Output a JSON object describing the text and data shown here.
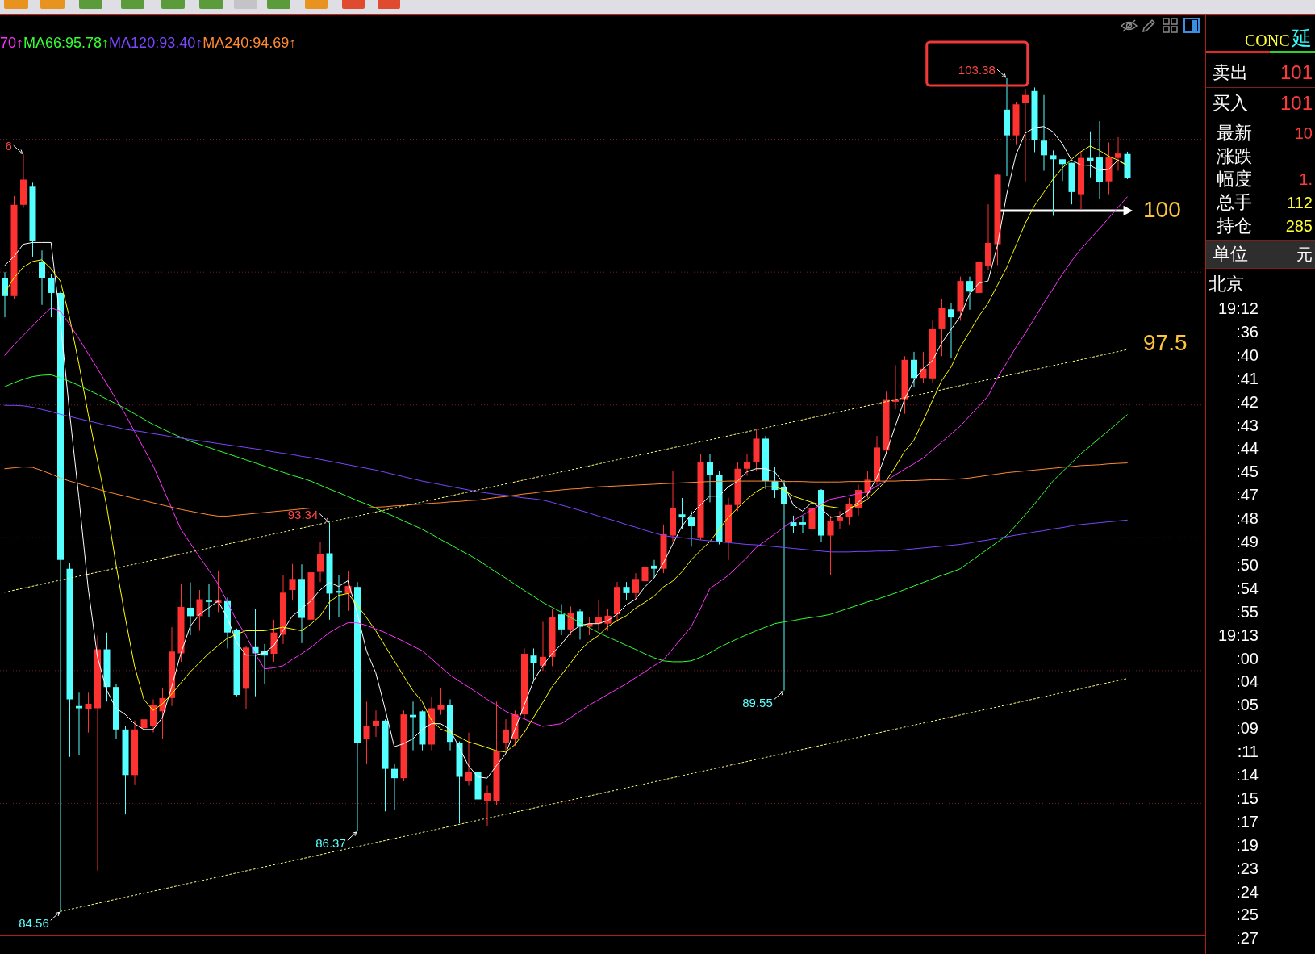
{
  "chart_data": [
    {
      "type": "candlestick",
      "categories": [
        null,
        null,
        null,
        null,
        null,
        null,
        null,
        null,
        null,
        null,
        null,
        null,
        null,
        null,
        null,
        null,
        null,
        null,
        null,
        null,
        null,
        null,
        null,
        null,
        null,
        null,
        null,
        null,
        null,
        null,
        null,
        null,
        null,
        null,
        null,
        null,
        null,
        null,
        null,
        null,
        null,
        null,
        null,
        null,
        null,
        null,
        null,
        null,
        null,
        null,
        null,
        null,
        null,
        null,
        null,
        null,
        null,
        null,
        null,
        null,
        null,
        null,
        null,
        null,
        null,
        null,
        null,
        null,
        null,
        null,
        null,
        null,
        null,
        null,
        null,
        null,
        null,
        null,
        null,
        null,
        null,
        null,
        null,
        null,
        null,
        null,
        null,
        null,
        null,
        null,
        null,
        null,
        null,
        null,
        null,
        null,
        null,
        null,
        null,
        null,
        null,
        null,
        null,
        null,
        null,
        null,
        null,
        null,
        null,
        null,
        null,
        null,
        null,
        null,
        null,
        null,
        null,
        null,
        null,
        null,
        null,
        null
      ],
      "ohlc": [
        [
          98.87,
          99.0,
          97.98,
          98.46
        ],
        [
          98.46,
          100.72,
          98.39,
          100.52
        ],
        [
          100.52,
          101.66,
          100.45,
          101.09
        ],
        [
          100.93,
          101.02,
          99.35,
          99.7
        ],
        [
          99.24,
          99.49,
          98.26,
          98.87
        ],
        [
          98.87,
          98.95,
          97.98,
          98.53
        ],
        [
          98.53,
          98.56,
          84.56,
          92.5
        ],
        [
          92.3,
          92.43,
          88.05,
          89.35
        ],
        [
          89.2,
          89.5,
          88.1,
          89.15
        ],
        [
          89.13,
          89.5,
          88.6,
          89.25
        ],
        [
          89.15,
          90.79,
          85.48,
          90.48
        ],
        [
          90.48,
          90.86,
          89.3,
          89.63
        ],
        [
          89.63,
          89.7,
          88.46,
          88.67
        ],
        [
          88.67,
          88.74,
          86.75,
          87.64
        ],
        [
          87.64,
          88.87,
          87.43,
          88.67
        ],
        [
          88.7,
          89.0,
          88.55,
          88.9
        ],
        [
          88.74,
          89.35,
          88.6,
          89.22
        ],
        [
          89.08,
          89.6,
          88.46,
          89.38
        ],
        [
          89.38,
          90.98,
          89.2,
          90.43
        ],
        [
          90.39,
          91.95,
          90.2,
          91.44
        ],
        [
          91.42,
          91.99,
          90.8,
          91.23
        ],
        [
          91.23,
          91.82,
          90.9,
          91.61
        ],
        [
          91.58,
          91.95,
          91.2,
          91.55
        ],
        [
          91.53,
          92.26,
          91.32,
          91.58
        ],
        [
          91.57,
          91.65,
          90.5,
          90.86
        ],
        [
          90.91,
          90.95,
          89.42,
          89.45
        ],
        [
          89.59,
          90.55,
          89.13,
          90.52
        ],
        [
          90.53,
          91.4,
          89.42,
          90.39
        ],
        [
          90.45,
          90.6,
          89.7,
          90.34
        ],
        [
          90.38,
          91.15,
          90.2,
          90.86
        ],
        [
          90.81,
          92.16,
          90.6,
          91.76
        ],
        [
          91.82,
          92.41,
          91.6,
          92.07
        ],
        [
          92.07,
          92.4,
          90.62,
          91.19
        ],
        [
          91.15,
          92.5,
          90.81,
          92.22
        ],
        [
          92.23,
          92.9,
          92.0,
          92.64
        ],
        [
          92.65,
          93.34,
          91.15,
          91.74
        ],
        [
          91.8,
          92.15,
          91.2,
          91.76
        ],
        [
          91.74,
          92.25,
          91.35,
          91.91
        ],
        [
          91.89,
          92.0,
          86.37,
          88.37
        ],
        [
          88.46,
          89.3,
          87.9,
          88.75
        ],
        [
          88.74,
          89.1,
          88.5,
          88.87
        ],
        [
          88.87,
          88.9,
          86.82,
          87.78
        ],
        [
          87.78,
          87.9,
          86.85,
          87.57
        ],
        [
          87.57,
          89.1,
          87.5,
          89.01
        ],
        [
          89.0,
          89.3,
          88.2,
          88.95
        ],
        [
          89.08,
          89.1,
          88.2,
          88.33
        ],
        [
          88.33,
          89.4,
          88.2,
          89.15
        ],
        [
          89.11,
          89.6,
          89.0,
          89.22
        ],
        [
          89.22,
          89.35,
          88.2,
          88.39
        ],
        [
          88.37,
          88.4,
          86.55,
          87.6
        ],
        [
          87.5,
          88.6,
          87.4,
          87.71
        ],
        [
          87.71,
          87.9,
          86.95,
          87.09
        ],
        [
          87.05,
          87.4,
          86.5,
          87.23
        ],
        [
          87.05,
          89.3,
          86.95,
          88.19
        ],
        [
          88.37,
          88.9,
          88.2,
          88.67
        ],
        [
          88.46,
          89.1,
          88.3,
          89.01
        ],
        [
          89.01,
          90.5,
          88.9,
          90.38
        ],
        [
          90.34,
          90.5,
          89.8,
          90.17
        ],
        [
          90.11,
          91.1,
          90.0,
          90.31
        ],
        [
          90.31,
          91.4,
          90.1,
          91.2
        ],
        [
          91.27,
          91.5,
          90.8,
          90.93
        ],
        [
          90.93,
          91.45,
          90.8,
          91.3
        ],
        [
          91.34,
          91.4,
          90.7,
          90.99
        ],
        [
          90.99,
          91.2,
          90.8,
          91.06
        ],
        [
          91.06,
          91.6,
          90.9,
          91.2
        ],
        [
          91.06,
          91.4,
          90.9,
          91.24
        ],
        [
          91.27,
          92.0,
          91.1,
          91.89
        ],
        [
          91.89,
          92.0,
          91.6,
          91.75
        ],
        [
          91.75,
          92.2,
          91.6,
          92.07
        ],
        [
          92.02,
          92.5,
          91.9,
          92.34
        ],
        [
          92.37,
          92.5,
          92.1,
          92.3
        ],
        [
          92.3,
          93.3,
          92.2,
          93.08
        ],
        [
          93.05,
          94.5,
          92.9,
          93.67
        ],
        [
          93.53,
          93.9,
          93.2,
          93.46
        ],
        [
          93.46,
          93.6,
          92.8,
          93.26
        ],
        [
          93.01,
          94.9,
          92.95,
          94.7
        ],
        [
          94.7,
          94.9,
          93.8,
          94.42
        ],
        [
          94.42,
          94.5,
          92.85,
          92.91
        ],
        [
          92.91,
          93.9,
          92.5,
          93.74
        ],
        [
          93.74,
          94.7,
          93.6,
          94.56
        ],
        [
          94.56,
          94.9,
          94.4,
          94.7
        ],
        [
          94.7,
          95.45,
          94.5,
          95.24
        ],
        [
          95.24,
          95.3,
          94.1,
          94.28
        ],
        [
          94.28,
          94.6,
          93.9,
          94.08
        ],
        [
          94.15,
          94.3,
          89.55,
          93.76
        ],
        [
          93.35,
          93.5,
          93.1,
          93.26
        ],
        [
          93.35,
          93.5,
          93.1,
          93.3
        ],
        [
          93.19,
          93.8,
          92.9,
          93.67
        ],
        [
          94.08,
          94.1,
          92.9,
          93.05
        ],
        [
          93.05,
          93.5,
          92.16,
          93.39
        ],
        [
          93.39,
          93.6,
          93.2,
          93.46
        ],
        [
          93.46,
          93.9,
          93.3,
          93.76
        ],
        [
          93.67,
          94.2,
          93.5,
          94.08
        ],
        [
          94.01,
          94.5,
          93.9,
          94.31
        ],
        [
          94.28,
          95.3,
          94.2,
          95.04
        ],
        [
          94.97,
          96.3,
          94.9,
          96.13
        ],
        [
          96.07,
          96.9,
          95.9,
          96.13
        ],
        [
          96.13,
          97.1,
          95.8,
          97.02
        ],
        [
          97.02,
          97.2,
          96.4,
          96.61
        ],
        [
          96.61,
          97.2,
          96.5,
          96.82
        ],
        [
          96.6,
          97.9,
          96.5,
          97.71
        ],
        [
          97.71,
          98.4,
          97.1,
          98.19
        ],
        [
          98.16,
          98.3,
          97.06,
          97.98
        ],
        [
          98.12,
          98.9,
          97.9,
          98.8
        ],
        [
          98.8,
          98.9,
          98.15,
          98.56
        ],
        [
          98.53,
          100.06,
          98.4,
          99.24
        ],
        [
          99.15,
          100.53,
          99.05,
          99.66
        ],
        [
          99.63,
          101.23,
          99.16,
          101.2
        ],
        [
          102.67,
          103.38,
          101.17,
          102.09
        ],
        [
          102.09,
          102.85,
          101.87,
          102.79
        ],
        [
          102.82,
          103.14,
          101.05,
          103.0
        ],
        [
          103.09,
          103.17,
          101.71,
          101.99
        ],
        [
          101.97,
          103.0,
          101.29,
          101.64
        ],
        [
          101.64,
          101.75,
          100.27,
          101.55
        ],
        [
          101.55,
          101.55,
          101.06,
          101.44
        ],
        [
          101.47,
          101.47,
          100.53,
          100.81
        ],
        [
          100.76,
          101.71,
          100.41,
          101.58
        ],
        [
          101.58,
          102.18,
          101.14,
          101.51
        ],
        [
          101.59,
          102.41,
          100.66,
          101.03
        ],
        [
          101.05,
          101.93,
          100.76,
          101.59
        ],
        [
          101.58,
          102.05,
          101.29,
          101.68
        ],
        [
          101.67,
          101.72,
          101.1,
          101.12
        ]
      ],
      "colors": [
        "#54ffff",
        "#ff3232",
        "#ff3232",
        "#54ffff",
        "#54ffff",
        "#54ffff",
        "#54ffff",
        "#54ffff",
        "#54ffff",
        "#ff3232",
        "#ff3232",
        "#54ffff",
        "#54ffff",
        "#54ffff",
        "#ff3232",
        "#ff3232",
        "#ff3232",
        "#ff3232",
        "#ff3232",
        "#ff3232",
        "#54ffff",
        "#ff3232",
        "#54ffff",
        "#ff3232",
        "#54ffff",
        "#54ffff",
        "#ff3232",
        "#54ffff",
        "#54ffff",
        "#ff3232",
        "#ff3232",
        "#ff3232",
        "#54ffff",
        "#ff3232",
        "#ff3232",
        "#54ffff",
        "#54ffff",
        "#ff3232",
        "#54ffff",
        "#ff3232",
        "#ff3232",
        "#54ffff",
        "#54ffff",
        "#ff3232",
        "#54ffff",
        "#54ffff",
        "#ff3232",
        "#ff3232",
        "#54ffff",
        "#54ffff",
        "#ff3232",
        "#54ffff",
        "#ff3232",
        "#ff3232",
        "#ff3232",
        "#ff3232",
        "#ff3232",
        "#54ffff",
        "#ff3232",
        "#ff3232",
        "#54ffff",
        "#ff3232",
        "#54ffff",
        "#ff3232",
        "#ff3232",
        "#ff3232",
        "#ff3232",
        "#54ffff",
        "#ff3232",
        "#ff3232",
        "#54ffff",
        "#ff3232",
        "#ff3232",
        "#54ffff",
        "#54ffff",
        "#ff3232",
        "#54ffff",
        "#54ffff",
        "#ff3232",
        "#ff3232",
        "#ff3232",
        "#ff3232",
        "#54ffff",
        "#54ffff",
        "#54ffff",
        "#54ffff",
        "#54ffff",
        "#ff3232",
        "#54ffff",
        "#ff3232",
        "#ff3232",
        "#ff3232",
        "#ff3232",
        "#ff3232",
        "#ff3232",
        "#ff3232",
        "#ff3232",
        "#ff3232",
        "#54ffff",
        "#ff3232",
        "#ff3232",
        "#ff3232",
        "#54ffff",
        "#ff3232",
        "#54ffff",
        "#ff3232",
        "#ff3232",
        "#ff3232",
        "#54ffff",
        "#ff3232",
        "#ff3232",
        "#54ffff",
        "#54ffff",
        "#54ffff",
        "#54ffff",
        "#54ffff",
        "#ff3232",
        "#54ffff",
        "#54ffff",
        "#ff3232",
        "#ff3232",
        "#54ffff"
      ],
      "series": [
        {
          "type": "line",
          "color": "#ffffff",
          "values": [
            99.15,
            99.35,
            99.63,
            99.67,
            99.67,
            99.67,
            97.9,
            95.83,
            93.91,
            91.87,
            90.31,
            89.56,
            89.15,
            89.01,
            88.8,
            88.67,
            88.67,
            88.94,
            89.63,
            90.39,
            91.0,
            91.27,
            91.42,
            91.57,
            91.2,
            90.64,
            90.35,
            90.35,
            90.4,
            90.56,
            90.9,
            91.23,
            91.4,
            91.57,
            91.82,
            91.99,
            91.9,
            92.03,
            91.3,
            90.45,
            89.95,
            89.14,
            88.28,
            88.35,
            88.46,
            88.67,
            88.8,
            88.8,
            88.67,
            88.26,
            87.85,
            87.6,
            87.57,
            87.85,
            88.12,
            88.67,
            89.22,
            89.76,
            90.11,
            90.38,
            90.59,
            90.86,
            91.02,
            91.06,
            91.06,
            91.13,
            91.27,
            91.48,
            91.61,
            91.89,
            92.09,
            92.43,
            92.85,
            93.26,
            93.53,
            93.74,
            93.94,
            93.94,
            94.15,
            94.28,
            94.49,
            94.56,
            94.56,
            94.49,
            94.22,
            93.74,
            93.6,
            93.8,
            93.67,
            93.46,
            93.49,
            93.63,
            93.8,
            93.98,
            94.35,
            94.9,
            95.52,
            96.13,
            96.55,
            96.82,
            97.0,
            97.4,
            97.7,
            98.0,
            98.5,
            98.75,
            98.8,
            99.6,
            100.75,
            101.65,
            102.14,
            102.26,
            102.29,
            102.17,
            101.9,
            101.53,
            101.42,
            101.41,
            101.3,
            101.32,
            101.53,
            101.41
          ]
        },
        {
          "type": "line",
          "color": "#ffff00",
          "values": [
            98.53,
            98.87,
            99.11,
            99.24,
            99.28,
            99.08,
            98.8,
            97.97,
            96.93,
            95.8,
            94.75,
            93.71,
            92.4,
            91.2,
            90.1,
            89.35,
            89.1,
            89.25,
            89.47,
            89.72,
            89.97,
            90.18,
            90.39,
            90.56,
            90.73,
            90.82,
            90.9,
            90.9,
            90.9,
            90.94,
            90.98,
            90.94,
            90.9,
            91.05,
            91.23,
            91.55,
            91.7,
            91.74,
            91.48,
            91.2,
            90.9,
            90.56,
            90.22,
            89.88,
            89.55,
            89.3,
            88.88,
            88.68,
            88.6,
            88.5,
            88.39,
            88.33,
            88.26,
            88.19,
            88.16,
            88.33,
            88.6,
            88.94,
            89.28,
            89.63,
            89.9,
            90.17,
            90.45,
            90.65,
            90.79,
            90.99,
            91.13,
            91.24,
            91.41,
            91.54,
            91.68,
            91.89,
            92.02,
            92.23,
            92.5,
            92.71,
            92.91,
            93.19,
            93.46,
            93.67,
            93.87,
            94.04,
            94.15,
            94.15,
            94.08,
            93.94,
            93.87,
            93.8,
            93.74,
            93.7,
            93.67,
            93.67,
            93.74,
            93.87,
            94.08,
            94.28,
            94.6,
            94.95,
            95.2,
            95.64,
            96.1,
            96.55,
            96.85,
            97.3,
            97.65,
            98.0,
            98.3,
            98.7,
            99.1,
            99.6,
            100.1,
            100.5,
            100.8,
            101.1,
            101.35,
            101.55,
            101.72,
            101.85,
            101.75,
            101.62,
            101.53,
            101.41
          ]
        },
        {
          "type": "line",
          "name": "70↑",
          "color": "#ff33ff",
          "values": [
            97.12,
            97.35,
            97.57,
            97.78,
            98.0,
            98.19,
            98.12,
            97.82,
            97.5,
            97.16,
            96.82,
            96.48,
            96.13,
            95.79,
            95.4,
            95.02,
            94.63,
            94.15,
            93.67,
            93.19,
            92.88,
            92.57,
            92.27,
            91.96,
            91.55,
            91.13,
            90.8,
            90.38,
            90.04,
            90.06,
            90.11,
            90.25,
            90.38,
            90.52,
            90.69,
            90.86,
            90.98,
            91.08,
            91.08,
            91.02,
            90.94,
            90.86,
            90.76,
            90.66,
            90.55,
            90.45,
            90.27,
            90.08,
            89.9,
            89.76,
            89.63,
            89.49,
            89.35,
            89.22,
            89.08,
            88.99,
            88.91,
            88.82,
            88.74,
            88.77,
            88.8,
            88.94,
            89.08,
            89.22,
            89.34,
            89.46,
            89.58,
            89.7,
            89.84,
            89.97,
            90.11,
            90.24,
            90.49,
            90.74,
            90.99,
            91.4,
            91.85,
            92.0,
            92.15,
            92.35,
            92.55,
            92.78,
            92.93,
            93.08,
            93.24,
            93.39,
            93.51,
            93.63,
            93.75,
            93.87,
            93.91,
            93.95,
            94.0,
            94.04,
            94.17,
            94.29,
            94.42,
            94.55,
            94.67,
            94.8,
            94.98,
            95.16,
            95.34,
            95.52,
            95.75,
            95.97,
            96.2,
            96.61,
            96.95,
            97.3,
            97.62,
            97.95,
            98.3,
            98.62,
            98.95,
            99.25,
            99.52,
            99.75,
            99.98,
            100.22,
            100.46,
            100.7
          ]
        },
        {
          "type": "line",
          "name": "MA66:95.78↑",
          "color": "#33ff33",
          "values": [
            96.41,
            96.5,
            96.58,
            96.64,
            96.67,
            96.68,
            96.61,
            96.53,
            96.44,
            96.34,
            96.24,
            96.13,
            96.03,
            95.92,
            95.8,
            95.68,
            95.56,
            95.46,
            95.36,
            95.27,
            95.18,
            95.11,
            95.04,
            94.97,
            94.9,
            94.83,
            94.76,
            94.69,
            94.62,
            94.55,
            94.48,
            94.41,
            94.35,
            94.28,
            94.19,
            94.1,
            94.02,
            93.93,
            93.84,
            93.76,
            93.67,
            93.57,
            93.48,
            93.38,
            93.29,
            93.19,
            93.08,
            92.96,
            92.85,
            92.73,
            92.62,
            92.5,
            92.36,
            92.22,
            92.09,
            91.95,
            91.81,
            91.68,
            91.54,
            91.43,
            91.32,
            91.2,
            91.09,
            90.97,
            90.86,
            90.76,
            90.67,
            90.57,
            90.48,
            90.38,
            90.29,
            90.22,
            90.2,
            90.2,
            90.22,
            90.3,
            90.4,
            90.52,
            90.62,
            90.72,
            90.81,
            90.9,
            90.98,
            91.06,
            91.1,
            91.13,
            91.17,
            91.2,
            91.23,
            91.27,
            91.34,
            91.41,
            91.48,
            91.55,
            91.61,
            91.68,
            91.75,
            91.83,
            91.91,
            91.99,
            92.07,
            92.15,
            92.22,
            92.3,
            92.45,
            92.6,
            92.75,
            92.9,
            93.05,
            93.28,
            93.52,
            93.76,
            94.02,
            94.28,
            94.49,
            94.69,
            94.9,
            95.07,
            95.25,
            95.42,
            95.6,
            95.78
          ]
        },
        {
          "type": "line",
          "name": "MA120:93.40↑",
          "color": "#7b46ff",
          "values": [
            95.99,
            95.99,
            95.98,
            95.95,
            95.9,
            95.85,
            95.79,
            95.74,
            95.69,
            95.64,
            95.59,
            95.54,
            95.5,
            95.45,
            95.42,
            95.39,
            95.35,
            95.32,
            95.28,
            95.25,
            95.22,
            95.19,
            95.16,
            95.13,
            95.1,
            95.07,
            95.04,
            95.01,
            94.98,
            94.94,
            94.91,
            94.88,
            94.84,
            94.81,
            94.77,
            94.73,
            94.69,
            94.65,
            94.61,
            94.57,
            94.53,
            94.48,
            94.43,
            94.38,
            94.33,
            94.28,
            94.24,
            94.2,
            94.16,
            94.12,
            94.08,
            94.04,
            94.01,
            93.98,
            93.96,
            93.93,
            93.9,
            93.88,
            93.85,
            93.8,
            93.74,
            93.68,
            93.62,
            93.56,
            93.49,
            93.43,
            93.37,
            93.3,
            93.24,
            93.17,
            93.11,
            93.05,
            93.02,
            93.0,
            92.98,
            92.95,
            92.93,
            92.91,
            92.89,
            92.87,
            92.85,
            92.84,
            92.82,
            92.8,
            92.78,
            92.76,
            92.74,
            92.72,
            92.7,
            92.68,
            92.68,
            92.68,
            92.69,
            92.69,
            92.7,
            92.7,
            92.71,
            92.73,
            92.75,
            92.77,
            92.79,
            92.81,
            92.83,
            92.85,
            92.88,
            92.92,
            92.95,
            92.99,
            93.02,
            93.06,
            93.09,
            93.13,
            93.16,
            93.2,
            93.23,
            93.27,
            93.3,
            93.32,
            93.34,
            93.36,
            93.38,
            93.4
          ]
        },
        {
          "type": "line",
          "name": "MA240:94.69↑",
          "color": "#ff8a33",
          "values": [
            94.56,
            94.58,
            94.6,
            94.59,
            94.52,
            94.44,
            94.35,
            94.28,
            94.22,
            94.16,
            94.1,
            94.04,
            93.99,
            93.94,
            93.89,
            93.84,
            93.79,
            93.74,
            93.69,
            93.64,
            93.6,
            93.56,
            93.52,
            93.49,
            93.49,
            93.51,
            93.53,
            93.55,
            93.57,
            93.59,
            93.61,
            93.63,
            93.65,
            93.67,
            93.67,
            93.67,
            93.67,
            93.67,
            93.67,
            93.67,
            93.69,
            93.7,
            93.72,
            93.73,
            93.75,
            93.76,
            93.78,
            93.79,
            93.81,
            93.82,
            93.84,
            93.85,
            93.88,
            93.91,
            93.93,
            93.96,
            93.99,
            94.01,
            94.04,
            94.06,
            94.08,
            94.1,
            94.11,
            94.13,
            94.15,
            94.16,
            94.17,
            94.18,
            94.19,
            94.2,
            94.21,
            94.22,
            94.23,
            94.24,
            94.25,
            94.26,
            94.27,
            94.27,
            94.28,
            94.28,
            94.28,
            94.28,
            94.28,
            94.28,
            94.27,
            94.27,
            94.27,
            94.26,
            94.26,
            94.26,
            94.26,
            94.27,
            94.27,
            94.27,
            94.28,
            94.28,
            94.28,
            94.29,
            94.29,
            94.3,
            94.31,
            94.31,
            94.32,
            94.33,
            94.35,
            94.38,
            94.41,
            94.44,
            94.47,
            94.49,
            94.51,
            94.53,
            94.55,
            94.57,
            94.59,
            94.61,
            94.63,
            94.64,
            94.65,
            94.67,
            94.68,
            94.69
          ]
        },
        {
          "type": "line",
          "color": "#ffff80",
          "line_style": "dotted",
          "values": [
            91.77,
            null,
            null,
            null,
            null,
            null,
            null,
            null,
            null,
            null,
            null,
            null,
            null,
            null,
            null,
            null,
            null,
            null,
            null,
            null,
            null,
            null,
            null,
            null,
            null,
            null,
            null,
            null,
            null,
            null,
            null,
            null,
            null,
            null,
            null,
            null,
            null,
            null,
            null,
            null,
            null,
            null,
            null,
            null,
            null,
            null,
            null,
            null,
            null,
            null,
            null,
            null,
            null,
            null,
            null,
            null,
            null,
            null,
            null,
            null,
            null,
            null,
            null,
            null,
            null,
            null,
            null,
            null,
            null,
            null,
            null,
            null,
            null,
            null,
            null,
            null,
            null,
            null,
            null,
            null,
            null,
            null,
            null,
            null,
            null,
            null,
            null,
            null,
            null,
            null,
            null,
            null,
            null,
            null,
            null,
            null,
            null,
            null,
            null,
            null,
            null,
            null,
            null,
            null,
            null,
            null,
            null,
            null,
            null,
            null,
            null,
            null,
            null,
            null,
            null,
            null,
            null,
            null,
            null,
            null,
            null,
            97.25
          ]
        },
        {
          "type": "line",
          "color": "#ffff80",
          "line_style": "dotted",
          "values": [
            null,
            null,
            null,
            null,
            null,
            null,
            84.56,
            null,
            null,
            null,
            null,
            null,
            null,
            null,
            null,
            null,
            null,
            null,
            null,
            null,
            null,
            null,
            null,
            null,
            null,
            null,
            null,
            null,
            null,
            null,
            null,
            null,
            null,
            null,
            null,
            null,
            null,
            null,
            null,
            null,
            null,
            null,
            null,
            null,
            null,
            null,
            null,
            null,
            null,
            null,
            null,
            null,
            null,
            null,
            null,
            null,
            null,
            null,
            null,
            null,
            null,
            null,
            null,
            null,
            null,
            null,
            null,
            null,
            null,
            null,
            null,
            null,
            null,
            null,
            null,
            null,
            null,
            null,
            null,
            null,
            null,
            null,
            null,
            null,
            null,
            null,
            null,
            null,
            null,
            null,
            null,
            null,
            null,
            null,
            null,
            null,
            null,
            null,
            null,
            null,
            null,
            null,
            null,
            null,
            null,
            null,
            null,
            null,
            null,
            null,
            null,
            null,
            null,
            null,
            null,
            null,
            null,
            null,
            null,
            null,
            null,
            89.82
          ]
        }
      ],
      "ylim": [
        84.0,
        104.8
      ],
      "yticks": [
        {
          "value": 87,
          "label": null
        },
        {
          "value": 90,
          "label": null
        },
        {
          "value": 93,
          "label": null
        },
        {
          "value": 96,
          "label": null
        },
        {
          "value": 99,
          "label": null
        },
        {
          "value": 102,
          "label": null
        }
      ],
      "grid": "y",
      "tick_labels": false,
      "legend": "top left",
      "annotations": [
        "6",
        "93.34",
        "84.56",
        "86.37",
        "89.55",
        "103.38",
        "100",
        "97.5"
      ]
    },
    {
      "type": "other",
      "title": "CONC",
      "subtitle": "延",
      "categories": [
        "卖出",
        "买入",
        "最新",
        "涨跌",
        "幅度",
        "总手",
        "持仓",
        "单位"
      ],
      "value_labels": [
        "101",
        "101",
        "10",
        null,
        "1.",
        "112",
        "285",
        "元"
      ],
      "annotations": [
        "北京",
        "19:12",
        ":36",
        ":40",
        ":41",
        ":42",
        ":43",
        ":44",
        ":45",
        ":47",
        ":48",
        ":49",
        ":50",
        ":54",
        ":55",
        "19:13",
        ":00",
        ":04",
        ":05",
        ":09",
        ":11",
        ":14",
        ":15",
        ":17",
        ":19",
        ":23",
        ":24",
        ":25",
        ":27"
      ]
    }
  ]
}
